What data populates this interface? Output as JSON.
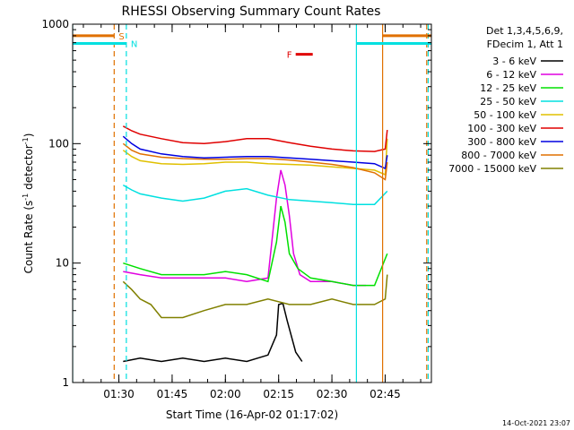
{
  "chart_data": {
    "type": "line",
    "title": "RHESSI Observing Summary Count Rates",
    "xlabel": "Start Time (16-Apr-02 01:17:02)",
    "ylabel_main": "Count Rate (s",
    "ylabel_sup1": "-1",
    "ylabel_mid": " detector",
    "ylabel_sup2": "-1",
    "ylabel_end": ")",
    "y_scale": "log",
    "ylim": [
      1,
      1000
    ],
    "x_range_minutes": [
      1.283,
      2.967
    ],
    "x_ticks": [
      {
        "label": "01:30",
        "value": 1.5
      },
      {
        "label": "01:45",
        "value": 1.75
      },
      {
        "label": "02:00",
        "value": 2.0
      },
      {
        "label": "02:15",
        "value": 2.25
      },
      {
        "label": "02:30",
        "value": 2.5
      },
      {
        "label": "02:45",
        "value": 2.75
      }
    ],
    "y_ticks": [
      {
        "label": "1",
        "value": 1
      },
      {
        "label": "10",
        "value": 10
      },
      {
        "label": "100",
        "value": 100
      },
      {
        "label": "1000",
        "value": 1000
      }
    ],
    "legend_header": [
      "Det 1,3,4,5,6,9,",
      "FDecim 1, Att 1"
    ],
    "legend_placement": "right",
    "series": [
      {
        "name": "3 - 6 keV",
        "color": "#000000",
        "x": [
          1.52,
          1.6,
          1.7,
          1.8,
          1.9,
          2.0,
          2.1,
          2.2,
          2.24,
          2.25,
          2.27,
          2.29,
          2.33,
          2.36
        ],
        "y": [
          1.5,
          1.6,
          1.5,
          1.6,
          1.5,
          1.6,
          1.5,
          1.7,
          2.5,
          4.5,
          4.6,
          3.3,
          1.8,
          1.5
        ]
      },
      {
        "name": "6 - 12 keV",
        "color": "#e000e0",
        "x": [
          1.52,
          1.6,
          1.7,
          1.8,
          1.9,
          2.0,
          2.1,
          2.2,
          2.24,
          2.26,
          2.28,
          2.3,
          2.32,
          2.35,
          2.4,
          2.5,
          2.6,
          2.66
        ],
        "y": [
          8.5,
          8.0,
          7.5,
          7.5,
          7.5,
          7.5,
          7.0,
          7.5,
          35,
          60,
          45,
          25,
          12,
          8,
          7,
          7,
          6.5,
          6.5
        ]
      },
      {
        "name": "12 - 25 keV",
        "color": "#00e000",
        "x": [
          1.52,
          1.6,
          1.7,
          1.8,
          1.9,
          2.0,
          2.1,
          2.2,
          2.24,
          2.26,
          2.28,
          2.3,
          2.34,
          2.4,
          2.5,
          2.6,
          2.7,
          2.76
        ],
        "y": [
          10,
          9,
          8,
          8,
          8,
          8.5,
          8,
          7,
          15,
          30,
          22,
          12,
          9,
          7.5,
          7,
          6.5,
          6.5,
          12
        ]
      },
      {
        "name": "25 - 50 keV",
        "color": "#00e0e0",
        "x": [
          1.52,
          1.56,
          1.6,
          1.7,
          1.8,
          1.9,
          2.0,
          2.1,
          2.2,
          2.3,
          2.4,
          2.5,
          2.6,
          2.7,
          2.76
        ],
        "y": [
          45,
          41,
          38,
          35,
          33,
          35,
          40,
          42,
          37,
          34,
          33,
          32,
          31,
          31,
          40
        ]
      },
      {
        "name": "50 - 100 keV",
        "color": "#e0c000",
        "x": [
          1.52,
          1.56,
          1.6,
          1.7,
          1.8,
          1.9,
          2.0,
          2.1,
          2.2,
          2.3,
          2.4,
          2.5,
          2.6,
          2.7,
          2.75,
          2.76
        ],
        "y": [
          88,
          78,
          72,
          68,
          67,
          68,
          70,
          70,
          68,
          67,
          66,
          64,
          62,
          60,
          55,
          110
        ]
      },
      {
        "name": "100 - 300 keV",
        "color": "#e00000",
        "x": [
          1.52,
          1.56,
          1.6,
          1.7,
          1.8,
          1.9,
          2.0,
          2.1,
          2.2,
          2.3,
          2.4,
          2.5,
          2.6,
          2.7,
          2.75,
          2.76
        ],
        "y": [
          140,
          128,
          120,
          110,
          102,
          100,
          104,
          110,
          110,
          102,
          95,
          90,
          87,
          86,
          90,
          130
        ]
      },
      {
        "name": "300 - 800 keV",
        "color": "#0000e0",
        "x": [
          1.52,
          1.56,
          1.6,
          1.7,
          1.8,
          1.9,
          2.0,
          2.1,
          2.2,
          2.3,
          2.4,
          2.5,
          2.6,
          2.7,
          2.75,
          2.76
        ],
        "y": [
          115,
          100,
          90,
          82,
          78,
          76,
          77,
          78,
          78,
          76,
          74,
          72,
          70,
          68,
          62,
          80
        ]
      },
      {
        "name": "800 - 7000 keV",
        "color": "#e07000",
        "x": [
          1.52,
          1.56,
          1.6,
          1.7,
          1.8,
          1.9,
          2.0,
          2.1,
          2.2,
          2.3,
          2.4,
          2.5,
          2.6,
          2.7,
          2.75,
          2.76
        ],
        "y": [
          100,
          88,
          82,
          77,
          75,
          74,
          74,
          75,
          75,
          73,
          70,
          67,
          63,
          57,
          50,
          70
        ]
      },
      {
        "name": "7000 - 15000 keV",
        "color": "#808000",
        "x": [
          1.52,
          1.56,
          1.6,
          1.65,
          1.7,
          1.8,
          1.9,
          2.0,
          2.1,
          2.2,
          2.3,
          2.4,
          2.5,
          2.6,
          2.7,
          2.75,
          2.76
        ],
        "y": [
          7.0,
          6.0,
          5.0,
          4.5,
          3.5,
          3.5,
          4.0,
          4.5,
          4.5,
          5.0,
          4.5,
          4.5,
          5.0,
          4.5,
          4.5,
          5.0,
          8.0
        ]
      }
    ],
    "annotations": [
      {
        "label": "S",
        "color": "#e07000",
        "x_start": 1.283,
        "x_end": 1.478,
        "x_end_right": 2.738,
        "x_right_end": 2.967,
        "y": 800
      },
      {
        "label": "N",
        "color": "#00e0e0",
        "x_start": 1.283,
        "x_end": 1.535,
        "x_end_right": 2.615,
        "x_right_end": 2.967,
        "y": 690
      },
      {
        "label": "F",
        "color": "#e00000",
        "x_start": 2.33,
        "x_end": 2.41,
        "y": 560
      }
    ],
    "vertical_markers": [
      {
        "x": 1.478,
        "color": "#e07000",
        "style": "dashed"
      },
      {
        "x": 1.535,
        "color": "#00e0e0",
        "style": "dashed"
      },
      {
        "x": 2.615,
        "color": "#00e0e0",
        "style": "solid"
      },
      {
        "x": 2.738,
        "color": "#e07000",
        "style": "solid"
      },
      {
        "x": 2.945,
        "color": "#e07000",
        "style": "dashed"
      },
      {
        "x": 2.952,
        "color": "#00e0e0",
        "style": "dashed"
      },
      {
        "x": 1.283,
        "color": "#00e0e0",
        "style": "solid"
      }
    ],
    "footer_timestamp": "14-Oct-2021 23:07"
  }
}
